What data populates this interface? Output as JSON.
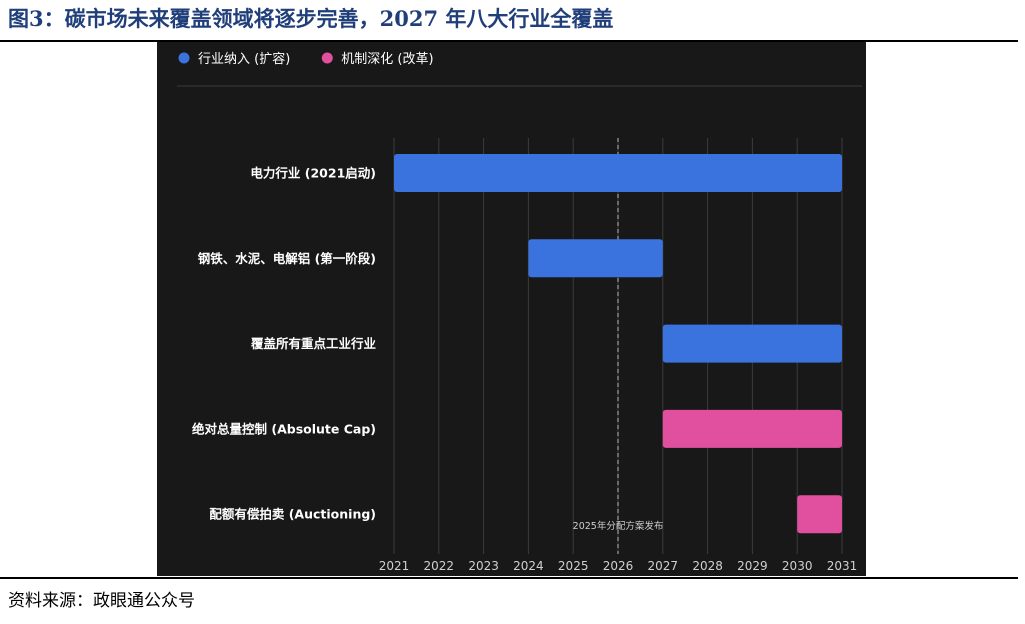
{
  "figure": {
    "title": "图3：碳市场未来覆盖领域将逐步完善，2027 年八大行业全覆盖",
    "source": "资料来源：政眼通公众号"
  },
  "chart_data": {
    "type": "bar",
    "orientation": "horizontal-range",
    "title": "",
    "xlabel": "",
    "ylabel": "",
    "x_ticks": [
      2021,
      2022,
      2023,
      2024,
      2025,
      2026,
      2027,
      2028,
      2029,
      2030,
      2031
    ],
    "xlim": [
      2021,
      2031
    ],
    "grid": true,
    "legend_position": "top-left",
    "series": [
      {
        "name": "行业纳入 (扩容)",
        "color": "#3a72de"
      },
      {
        "name": "机制深化 (改革)",
        "color": "#e0509f"
      }
    ],
    "categories": [
      "电力行业 (2021启动)",
      "钢铁、水泥、电解铝 (第一阶段)",
      "覆盖所有重点工业行业",
      "绝对总量控制 (Absolute Cap)",
      "配额有偿拍卖 (Auctioning)"
    ],
    "bars": [
      {
        "category": "电力行业 (2021启动)",
        "series": 0,
        "start": 2021,
        "end": 2031
      },
      {
        "category": "钢铁、水泥、电解铝 (第一阶段)",
        "series": 0,
        "start": 2024,
        "end": 2027
      },
      {
        "category": "覆盖所有重点工业行业",
        "series": 0,
        "start": 2027,
        "end": 2031
      },
      {
        "category": "绝对总量控制 (Absolute Cap)",
        "series": 1,
        "start": 2027,
        "end": 2031
      },
      {
        "category": "配额有偿拍卖 (Auctioning)",
        "series": 1,
        "start": 2030,
        "end": 2031
      }
    ],
    "annotations": [
      {
        "x": 2026,
        "label": "2025年分配方案发布",
        "style": "dashed-vertical"
      }
    ]
  }
}
